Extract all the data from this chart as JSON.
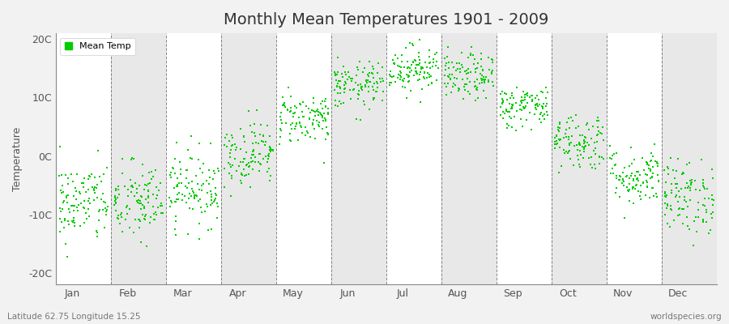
{
  "title": "Monthly Mean Temperatures 1901 - 2009",
  "ylabel": "Temperature",
  "xlabel_labels": [
    "Jan",
    "Feb",
    "Mar",
    "Apr",
    "May",
    "Jun",
    "Jul",
    "Aug",
    "Sep",
    "Oct",
    "Nov",
    "Dec"
  ],
  "ytick_labels": [
    "-20C",
    "-10C",
    "0C",
    "10C",
    "20C"
  ],
  "ytick_values": [
    -20,
    -10,
    0,
    10,
    20
  ],
  "ylim": [
    -22,
    21
  ],
  "dot_color": "#00cc00",
  "dot_size": 2,
  "background_color": "#f2f2f2",
  "band_color_light": "#ffffff",
  "band_color_dark": "#e8e8e8",
  "grid_color": "#555555",
  "title_fontsize": 14,
  "axis_fontsize": 9,
  "legend_label": "Mean Temp",
  "footer_left": "Latitude 62.75 Longitude 15.25",
  "footer_right": "worldspecies.org",
  "num_years": 109,
  "monthly_means": [
    -8.0,
    -8.0,
    -5.5,
    0.5,
    6.5,
    12.0,
    15.0,
    13.5,
    8.5,
    2.5,
    -3.5,
    -7.0
  ],
  "monthly_stds": [
    3.5,
    3.5,
    3.2,
    2.8,
    2.2,
    2.0,
    2.0,
    2.0,
    1.8,
    2.5,
    2.5,
    3.2
  ]
}
